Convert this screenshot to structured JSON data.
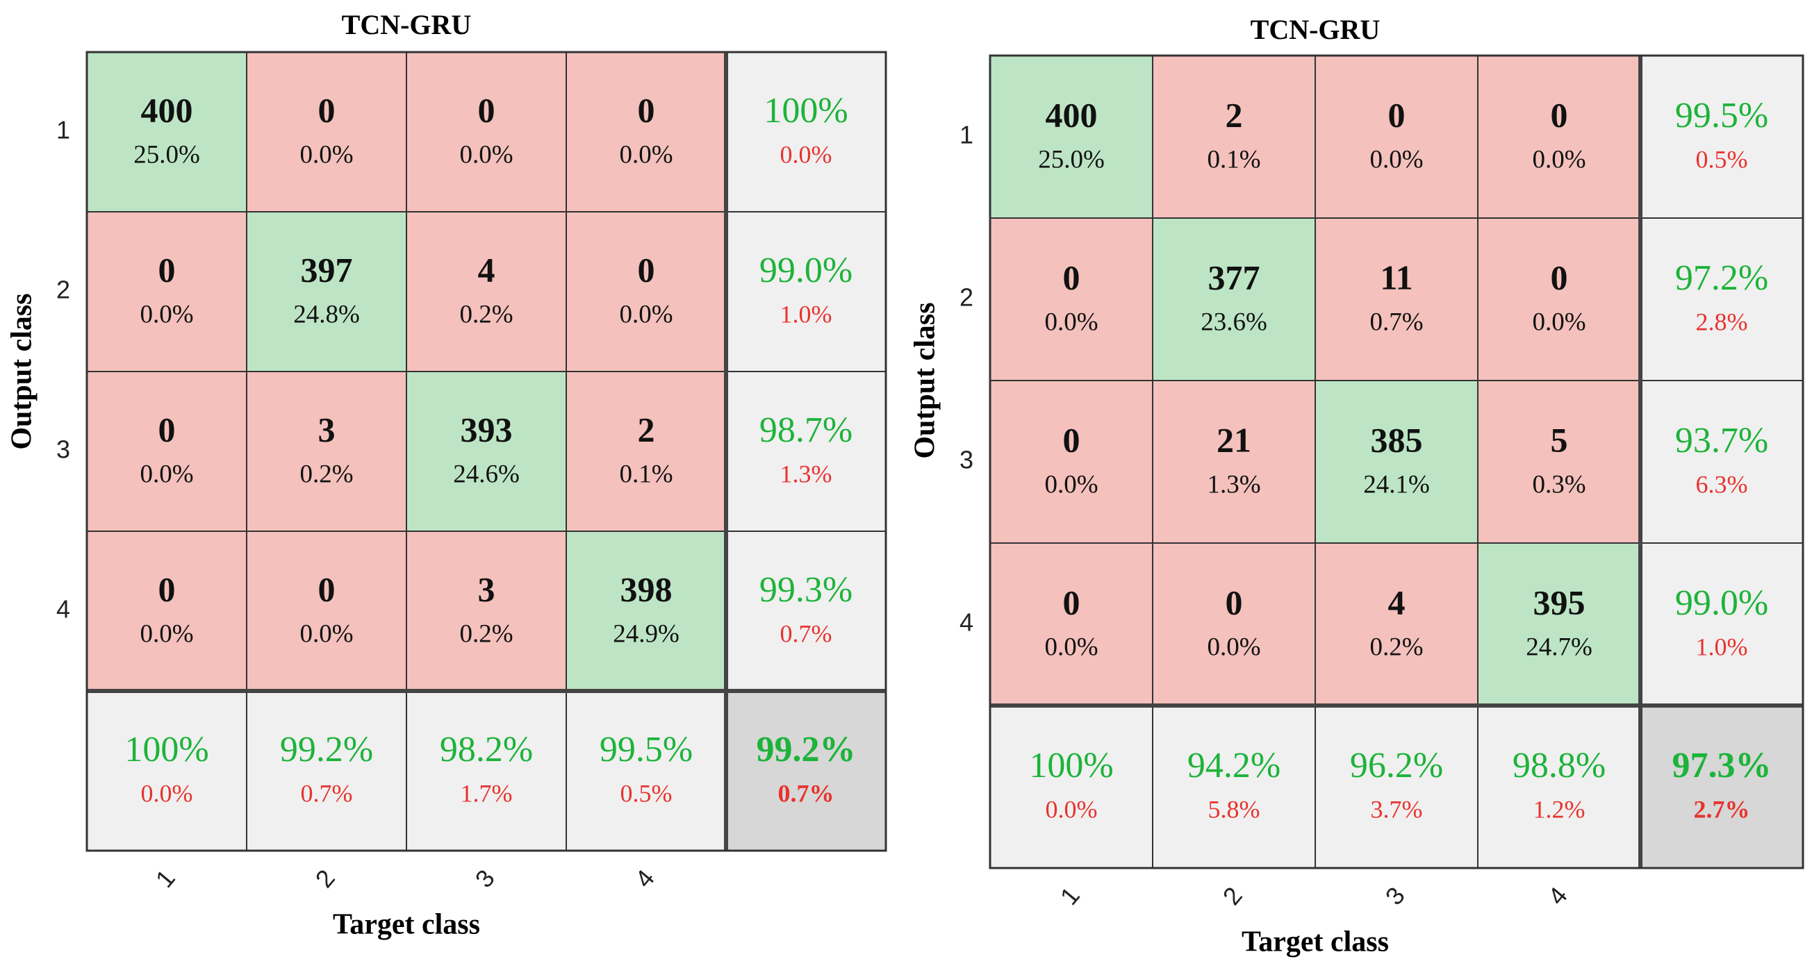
{
  "chart_data": [
    {
      "type": "confusion",
      "title": "TCN-GRU",
      "x_label": "Target class",
      "y_label": "Output class",
      "classes": [
        "1",
        "2",
        "3",
        "4"
      ],
      "matrix": [
        [
          400,
          0,
          0,
          0
        ],
        [
          0,
          397,
          4,
          0
        ],
        [
          0,
          3,
          393,
          2
        ],
        [
          0,
          0,
          3,
          398
        ]
      ],
      "cell_labels": [
        [
          "25.0%",
          "0.0%",
          "0.0%",
          "0.0%"
        ],
        [
          "0.0%",
          "24.8%",
          "0.2%",
          "0.0%"
        ],
        [
          "0.0%",
          "0.2%",
          "24.6%",
          "0.1%"
        ],
        [
          "0.0%",
          "0.0%",
          "0.2%",
          "24.9%"
        ]
      ],
      "row_summary": [
        [
          "100%",
          "0.0%"
        ],
        [
          "99.0%",
          "1.0%"
        ],
        [
          "98.7%",
          "1.3%"
        ],
        [
          "99.3%",
          "0.7%"
        ]
      ],
      "col_summary": [
        [
          "100%",
          "0.0%"
        ],
        [
          "99.2%",
          "0.7%"
        ],
        [
          "98.2%",
          "1.7%"
        ],
        [
          "99.5%",
          "0.5%"
        ]
      ],
      "overall": [
        "99.2%",
        "0.7%"
      ]
    },
    {
      "type": "confusion",
      "title": "TCN-GRU",
      "x_label": "Target class",
      "y_label": "Output class",
      "classes": [
        "1",
        "2",
        "3",
        "4"
      ],
      "matrix": [
        [
          400,
          2,
          0,
          0
        ],
        [
          0,
          377,
          11,
          0
        ],
        [
          0,
          21,
          385,
          5
        ],
        [
          0,
          0,
          4,
          395
        ]
      ],
      "cell_labels": [
        [
          "25.0%",
          "0.1%",
          "0.0%",
          "0.0%"
        ],
        [
          "0.0%",
          "23.6%",
          "0.7%",
          "0.0%"
        ],
        [
          "0.0%",
          "1.3%",
          "24.1%",
          "0.3%"
        ],
        [
          "0.0%",
          "0.0%",
          "0.2%",
          "24.7%"
        ]
      ],
      "row_summary": [
        [
          "99.5%",
          "0.5%"
        ],
        [
          "97.2%",
          "2.8%"
        ],
        [
          "93.7%",
          "6.3%"
        ],
        [
          "99.0%",
          "1.0%"
        ]
      ],
      "col_summary": [
        [
          "100%",
          "0.0%"
        ],
        [
          "94.2%",
          "5.8%"
        ],
        [
          "96.2%",
          "3.7%"
        ],
        [
          "98.8%",
          "1.2%"
        ]
      ],
      "overall": [
        "97.3%",
        "2.7%"
      ]
    }
  ]
}
